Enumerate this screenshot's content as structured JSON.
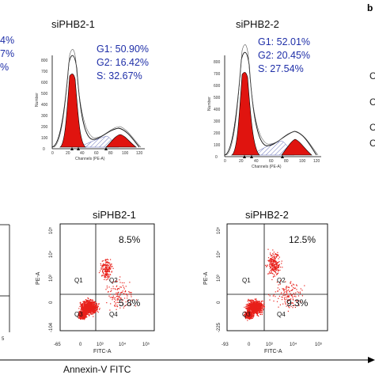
{
  "panel_b_label": "b",
  "cell_cycle": {
    "left_cut_stats": [
      "4%",
      "7%",
      "%"
    ],
    "right_side_letters": [
      "C",
      "C",
      "C",
      "C"
    ],
    "panels": [
      {
        "title": "siPHB2-1",
        "stats": [
          "G1: 50.90%",
          "G2: 16.42%",
          "S: 32.67%"
        ],
        "xlabel": "Channels (PE-A)",
        "ylabel": "Number",
        "xticks": [
          "0",
          "20",
          "40",
          "60",
          "80",
          "100",
          "120"
        ],
        "yticks": [
          "0",
          "100",
          "200",
          "300",
          "400",
          "500",
          "600",
          "700",
          "800"
        ]
      },
      {
        "title": "siPHB2-2",
        "stats": [
          "G1: 52.01%",
          "G2: 20.45%",
          "S: 27.54%"
        ],
        "xlabel": "Channels (PE-A)",
        "ylabel": "Number",
        "xticks": [
          "0",
          "20",
          "40",
          "60",
          "80",
          "100",
          "120"
        ],
        "yticks": [
          "0",
          "100",
          "200",
          "300",
          "400",
          "500",
          "600",
          "700",
          "800"
        ]
      }
    ]
  },
  "apoptosis": {
    "left_cut_labels": [
      "5"
    ],
    "bottom_label": "Annexin-V FITC",
    "panels": [
      {
        "title": "siPHB2-1",
        "q2_pct": "8.5%",
        "q4_pct": "5.8%",
        "quadrants": [
          "Q1",
          "Q2",
          "Q3",
          "Q4"
        ],
        "ylabel": "PE-A",
        "xlabel": "FITC-A",
        "yticks": [
          "10⁵",
          "10⁴",
          "10³",
          "0",
          "-104"
        ],
        "xticks": [
          "-65",
          "0",
          "10³",
          "10⁴",
          "10⁵"
        ]
      },
      {
        "title": "siPHB2-2",
        "q2_pct": "12.5%",
        "q4_pct": "9.3%",
        "quadrants": [
          "Q1",
          "Q2",
          "Q3",
          "Q4"
        ],
        "ylabel": "PE-A",
        "xlabel": "FITC-A",
        "yticks": [
          "10⁵",
          "10⁴",
          "10³",
          "0",
          "-225"
        ],
        "xticks": [
          "-93",
          "0",
          "10³",
          "10⁴",
          "10⁵"
        ]
      }
    ]
  },
  "colors": {
    "stat_text": "#1f2fa8",
    "g1_fill": "#e0140f",
    "s_hatch": "#5a64b4",
    "dots": "#e8201a"
  }
}
